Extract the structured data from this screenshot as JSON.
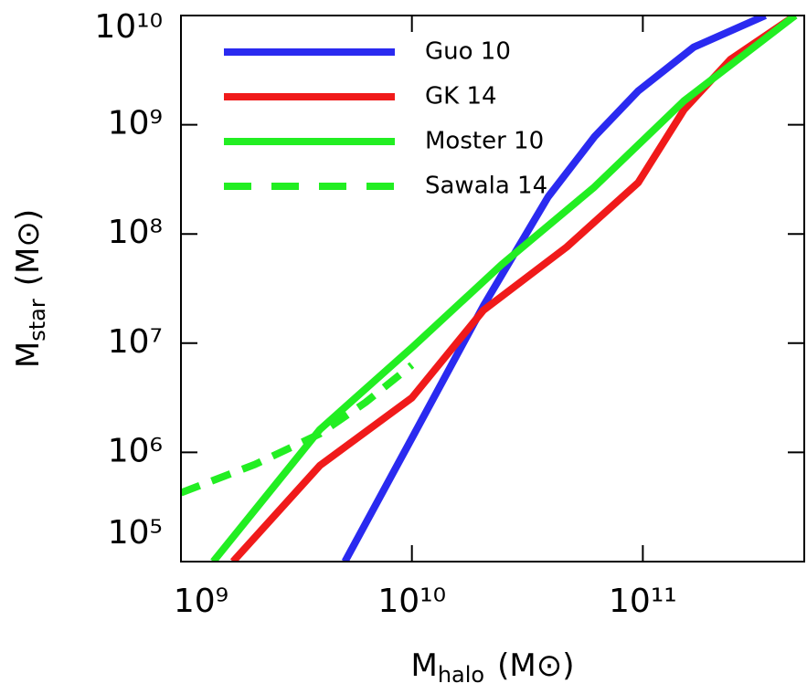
{
  "chart_data": {
    "type": "line",
    "x_label": {
      "main": "M",
      "sub": "halo",
      "unit": "(M⊙)"
    },
    "y_label": {
      "main": "M",
      "sub": "star",
      "unit": "(M⊙)"
    },
    "log_x": true,
    "log_y": true,
    "legend": "top-left",
    "xlim": [
      1000000000,
      500000000000
    ],
    "ylim": [
      100000,
      10000000000
    ],
    "xticks": [
      {
        "value": 1000000000,
        "label": "10⁹"
      },
      {
        "value": 10000000000,
        "label": "10¹⁰"
      },
      {
        "value": 100000000000,
        "label": "10¹¹"
      }
    ],
    "yticks": [
      {
        "value": 100000,
        "label": "10⁵"
      },
      {
        "value": 1000000,
        "label": "10⁶"
      },
      {
        "value": 10000000,
        "label": "10⁷"
      },
      {
        "value": 100000000,
        "label": "10⁸"
      },
      {
        "value": 1000000000,
        "label": "10⁹"
      },
      {
        "value": 10000000000,
        "label": "10¹⁰"
      }
    ],
    "series": [
      {
        "name": "Guo 10",
        "color": "#2a2af0",
        "dashed": false,
        "x": [
          5130000000,
          10000000000,
          20400000000,
          38900000000,
          61700000000,
          95500000000,
          166000000000,
          339000000000
        ],
        "values": [
          100000,
          1350000,
          21900000,
          219000000,
          776000000,
          2040000000,
          5130000000,
          10000000000
        ]
      },
      {
        "name": "GK 14",
        "color": "#f01a1a",
        "dashed": false,
        "x": [
          1680000000,
          4000000000,
          10000000000,
          20400000000,
          46800000000,
          95500000000,
          151000000000,
          240000000000,
          457000000000
        ],
        "values": [
          100000,
          760000,
          3160000,
          20000000,
          76000000,
          295000000,
          1380000000,
          3980000000,
          10000000000
        ]
      },
      {
        "name": "Moster 10",
        "color": "#22ee22",
        "dashed": false,
        "x": [
          1380000000,
          4000000000,
          10000000000,
          24500000000,
          61700000000,
          151000000000,
          457000000000
        ],
        "values": [
          100000,
          1620000,
          9100000,
          52500000,
          269000000,
          1660000000,
          10000000000
        ]
      },
      {
        "name": "Sawala 14",
        "color": "#22ee22",
        "dashed": true,
        "x": [
          1000000000,
          2090000000,
          4000000000,
          6310000000,
          10000000000
        ],
        "values": [
          427000,
          776000,
          1480000,
          2880000,
          6310000
        ]
      }
    ]
  }
}
